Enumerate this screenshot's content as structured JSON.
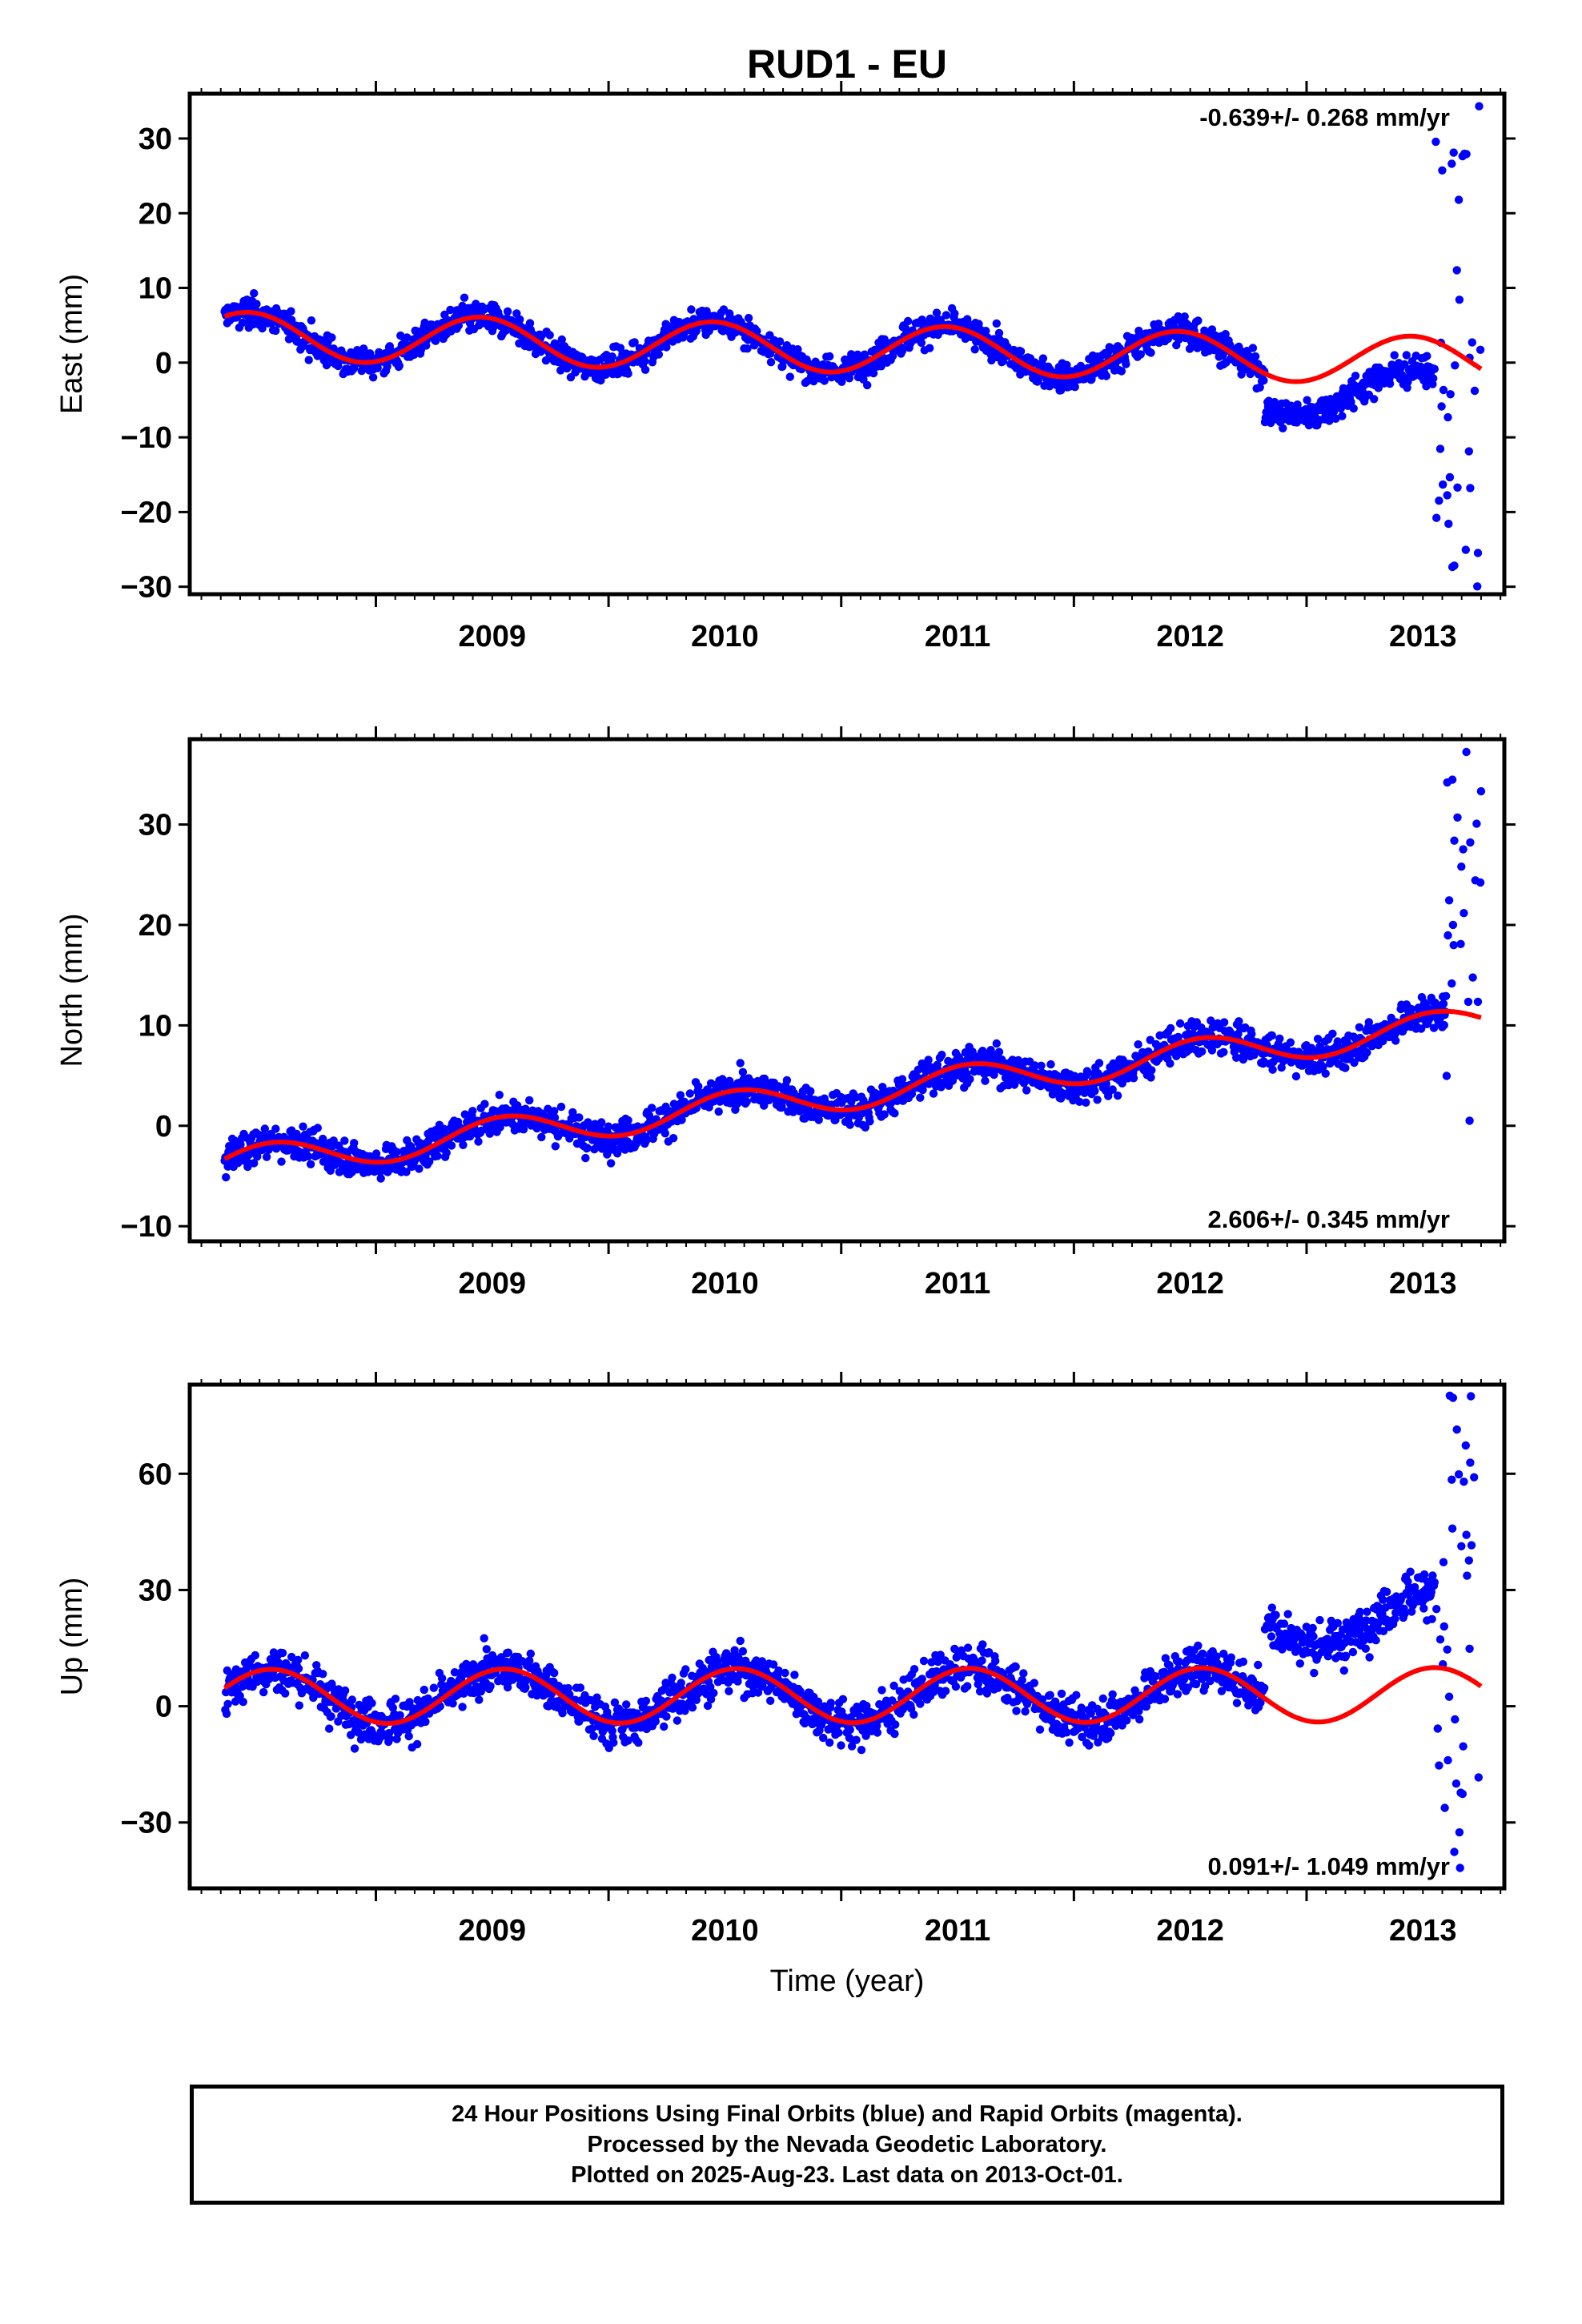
{
  "chart_data": [
    {
      "type": "scatter",
      "title": "RUD1 - EU",
      "ylabel": "East (mm)",
      "xlabel": "",
      "xlim": [
        2008.2,
        2013.85
      ],
      "ylim": [
        -31,
        36
      ],
      "yticks": [
        -30,
        -20,
        -10,
        0,
        10,
        20,
        30
      ],
      "xticks": [
        2009,
        2010,
        2011,
        2012,
        2013
      ],
      "grid": false,
      "annotation": "-0.639+/- 0.268 mm/yr",
      "data_span": [
        2008.35,
        2013.75
      ],
      "model": {
        "offset": 3.6,
        "trend": -0.639,
        "annual_amp": 3.2,
        "peak_phase": 0.45
      },
      "scatter_sigma": 1.4,
      "step": {
        "at": 2012.82,
        "shift": -4.5
      },
      "tail": {
        "start": 2013.55,
        "range": [
          -30,
          35
        ]
      }
    },
    {
      "type": "scatter",
      "title": "",
      "ylabel": "North (mm)",
      "xlabel": "",
      "xlim": [
        2008.2,
        2013.85
      ],
      "ylim": [
        -11.5,
        38.5
      ],
      "yticks": [
        -10,
        0,
        10,
        20,
        30
      ],
      "xticks": [
        2009,
        2010,
        2011,
        2012,
        2013
      ],
      "grid": false,
      "annotation": "2.606+/- 0.345 mm/yr",
      "data_span": [
        2008.35,
        2013.75
      ],
      "model": {
        "offset": -3.8,
        "trend": 2.606,
        "annual_amp": 1.6,
        "peak_phase": 0.55
      },
      "scatter_sigma": 1.2,
      "step": null,
      "tail": {
        "start": 2013.6,
        "range": [
          0,
          38
        ]
      }
    },
    {
      "type": "scatter",
      "title": "",
      "ylabel": "Up (mm)",
      "xlabel": "Time (year)",
      "xlim": [
        2008.2,
        2013.85
      ],
      "ylim": [
        -47,
        83
      ],
      "yticks": [
        -30,
        0,
        30,
        60
      ],
      "xticks": [
        2009,
        2010,
        2011,
        2012,
        2013
      ],
      "grid": false,
      "annotation": "0.091+/- 1.049 mm/yr",
      "data_span": [
        2008.35,
        2013.75
      ],
      "model": {
        "offset": 2.5,
        "trend": 0.091,
        "annual_amp": 7.0,
        "peak_phase": 0.55
      },
      "scatter_sigma": 4.0,
      "step": {
        "at": 2012.82,
        "shift": 20
      },
      "tail": {
        "start": 2013.55,
        "range": [
          -44,
          82
        ]
      }
    }
  ],
  "colors": {
    "data_points": "#0000ff",
    "model_line": "#ff0000",
    "frame": "#000000"
  },
  "footer": {
    "line1": "24 Hour Positions Using Final Orbits (blue) and Rapid Orbits (magenta).",
    "line2": "Processed by the Nevada Geodetic Laboratory.",
    "line3": "Plotted on 2025-Aug-23. Last data on 2013-Oct-01."
  }
}
